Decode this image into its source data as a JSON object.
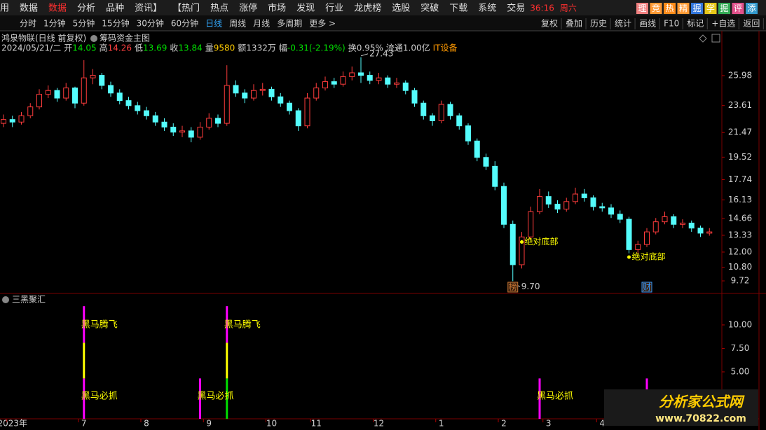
{
  "menu": {
    "items": [
      "用",
      "数据",
      "数据",
      "分析",
      "品种",
      "资讯】",
      "【热门",
      "热点",
      "涨停",
      "市场",
      "发现",
      "行业",
      "龙虎榜",
      "选股",
      "突破",
      "下载",
      "系统",
      "交易"
    ],
    "active": 2,
    "clock": "36:16",
    "day": "周六",
    "badges": [
      {
        "text": "理",
        "color": "#f08080"
      },
      {
        "text": "竞",
        "color": "#ff9933"
      },
      {
        "text": "热",
        "color": "#ff8c1a"
      },
      {
        "text": "精",
        "color": "#ff9933"
      },
      {
        "text": "掘",
        "color": "#3377dd"
      },
      {
        "text": "学",
        "color": "#e6c619"
      },
      {
        "text": "掘",
        "color": "#33aa55"
      },
      {
        "text": "评",
        "color": "#e0508a"
      },
      {
        "text": "添",
        "color": "#3399cc"
      }
    ]
  },
  "toolbar": {
    "periods": [
      "分时",
      "1分钟",
      "5分钟",
      "15分钟",
      "30分钟",
      "60分钟",
      "日线",
      "周线",
      "月线",
      "多周期",
      "更多 >"
    ],
    "active": 6,
    "actions": [
      "复权",
      "叠加",
      "历史",
      "统计",
      "画线",
      "F10",
      "标记",
      "+自选",
      "返回"
    ]
  },
  "info": [
    {
      "value": "2024/05/21/二",
      "color": "#d0d0d0"
    },
    {
      "label": "开",
      "value": "14.05",
      "color": "#00e000"
    },
    {
      "label": "高",
      "value": "14.26",
      "color": "#ff4040"
    },
    {
      "label": "低",
      "value": "13.69",
      "color": "#00e000"
    },
    {
      "label": "收",
      "value": "13.84",
      "color": "#00e000"
    },
    {
      "label": "量",
      "value": "9580",
      "color": "#ffcc00"
    },
    {
      "label": "额",
      "value": "1332万",
      "color": "#d0d0d0"
    },
    {
      "label": "幅",
      "value": "-0.31(-2.19%)",
      "color": "#00e000"
    },
    {
      "label": "换",
      "value": "0.95%",
      "color": "#d0d0d0"
    },
    {
      "label": "流通",
      "value": "1.00亿",
      "color": "#d0d0d0"
    },
    {
      "value": "IT设备",
      "color": "#ff9900"
    }
  ],
  "chart_data": [
    {
      "type": "candlestick",
      "title": "鸿泉物联(日线 前复权)",
      "indicator": "筹码资金主图",
      "up_color": "#ff3c3c",
      "down_color": "#54fcfc",
      "categories": [
        null,
        "2023年",
        null,
        null,
        null,
        null,
        null,
        null,
        null,
        "7",
        null,
        null,
        null,
        null,
        null,
        null,
        "8",
        null,
        null,
        null,
        null,
        null,
        null,
        "9",
        null,
        null,
        null,
        null,
        null,
        null,
        "10",
        null,
        null,
        null,
        null,
        "11",
        null,
        null,
        null,
        null,
        null,
        null,
        "12",
        null,
        null,
        null,
        null,
        null,
        null,
        "1",
        null,
        null,
        null,
        null,
        null,
        null,
        "2",
        null,
        null,
        null,
        null,
        "3",
        null,
        null,
        null,
        null,
        null,
        "4",
        null,
        null,
        null,
        null,
        null,
        null,
        null,
        null,
        null,
        null,
        null,
        null
      ],
      "candles": [
        [
          22.2,
          22.9,
          21.9,
          22.5
        ],
        [
          22.5,
          22.8,
          21.9,
          22.3
        ],
        [
          22.3,
          23.1,
          22.1,
          22.8
        ],
        [
          22.8,
          23.8,
          22.6,
          23.5
        ],
        [
          23.5,
          24.9,
          23.3,
          24.5
        ],
        [
          24.5,
          25.2,
          24.2,
          24.8
        ],
        [
          24.8,
          25.0,
          23.9,
          24.2
        ],
        [
          24.2,
          25.4,
          24.0,
          25.0
        ],
        [
          25.0,
          25.1,
          23.4,
          23.8
        ],
        [
          23.8,
          27.2,
          23.6,
          25.8
        ],
        [
          25.8,
          26.5,
          25.3,
          26.0
        ],
        [
          26.0,
          26.2,
          24.9,
          25.2
        ],
        [
          25.2,
          25.5,
          24.3,
          24.6
        ],
        [
          24.6,
          24.9,
          23.7,
          24.0
        ],
        [
          24.0,
          24.3,
          23.3,
          23.6
        ],
        [
          23.6,
          23.9,
          22.9,
          23.2
        ],
        [
          23.2,
          23.5,
          22.5,
          22.8
        ],
        [
          22.8,
          23.1,
          22.0,
          22.3
        ],
        [
          22.3,
          22.6,
          21.6,
          21.9
        ],
        [
          21.9,
          22.2,
          21.2,
          21.5
        ],
        [
          21.5,
          22.0,
          21.1,
          21.6
        ],
        [
          21.6,
          21.9,
          20.7,
          21.1
        ],
        [
          21.1,
          22.3,
          20.9,
          21.9
        ],
        [
          21.9,
          23.0,
          21.7,
          22.6
        ],
        [
          22.6,
          22.9,
          21.9,
          22.2
        ],
        [
          22.2,
          26.8,
          22.0,
          25.2
        ],
        [
          25.2,
          25.6,
          24.3,
          24.6
        ],
        [
          24.6,
          24.9,
          23.8,
          24.2
        ],
        [
          24.2,
          25.3,
          24.0,
          24.8
        ],
        [
          24.8,
          25.4,
          24.4,
          24.9
        ],
        [
          24.9,
          25.1,
          24.0,
          24.3
        ],
        [
          24.3,
          24.6,
          23.5,
          23.8
        ],
        [
          23.8,
          24.0,
          22.9,
          23.2
        ],
        [
          23.2,
          23.4,
          21.6,
          22.0
        ],
        [
          22.0,
          24.6,
          21.8,
          24.2
        ],
        [
          24.2,
          25.4,
          24.0,
          25.0
        ],
        [
          25.0,
          25.9,
          24.8,
          25.5
        ],
        [
          25.5,
          25.8,
          25.0,
          25.3
        ],
        [
          25.3,
          26.3,
          25.1,
          25.9
        ],
        [
          25.9,
          26.7,
          25.6,
          26.2
        ],
        [
          26.2,
          27.43,
          25.4,
          26.0
        ],
        [
          26.0,
          26.3,
          25.3,
          25.6
        ],
        [
          25.6,
          26.2,
          25.3,
          25.8
        ],
        [
          25.8,
          26.0,
          25.0,
          25.3
        ],
        [
          25.3,
          25.8,
          25.0,
          25.4
        ],
        [
          25.4,
          25.6,
          24.5,
          24.8
        ],
        [
          24.8,
          25.0,
          23.5,
          23.8
        ],
        [
          23.8,
          24.0,
          22.5,
          22.8
        ],
        [
          22.8,
          23.0,
          22.0,
          22.4
        ],
        [
          22.4,
          24.0,
          22.2,
          23.7
        ],
        [
          23.7,
          23.9,
          22.5,
          22.8
        ],
        [
          22.8,
          23.0,
          21.7,
          22.0
        ],
        [
          22.0,
          22.2,
          20.5,
          20.8
        ],
        [
          20.8,
          21.0,
          19.2,
          19.5
        ],
        [
          19.5,
          19.8,
          18.5,
          18.8
        ],
        [
          18.8,
          19.2,
          16.9,
          17.2
        ],
        [
          17.2,
          17.5,
          13.9,
          14.2
        ],
        [
          14.2,
          14.5,
          9.7,
          11.0
        ],
        [
          11.0,
          13.6,
          10.7,
          13.2
        ],
        [
          13.2,
          15.6,
          13.0,
          15.2
        ],
        [
          15.2,
          17.0,
          15.0,
          16.4
        ],
        [
          16.4,
          16.8,
          15.5,
          15.8
        ],
        [
          15.8,
          16.1,
          15.1,
          15.4
        ],
        [
          15.4,
          16.3,
          15.2,
          16.0
        ],
        [
          16.0,
          17.1,
          15.8,
          16.6
        ],
        [
          16.6,
          17.0,
          16.0,
          16.3
        ],
        [
          16.3,
          16.5,
          15.3,
          15.6
        ],
        [
          15.6,
          15.9,
          15.2,
          15.5
        ],
        [
          15.5,
          15.8,
          14.7,
          15.0
        ],
        [
          15.0,
          15.3,
          14.3,
          14.6
        ],
        [
          14.6,
          14.8,
          11.9,
          12.2
        ],
        [
          12.2,
          12.9,
          11.9,
          12.6
        ],
        [
          12.6,
          13.9,
          12.4,
          13.6
        ],
        [
          13.6,
          14.7,
          13.4,
          14.4
        ],
        [
          14.4,
          15.2,
          14.2,
          14.8
        ],
        [
          14.8,
          15.0,
          13.9,
          14.2
        ],
        [
          14.2,
          14.6,
          13.9,
          14.3
        ],
        [
          14.3,
          14.5,
          13.6,
          13.9
        ],
        [
          13.9,
          14.1,
          13.2,
          13.5
        ],
        [
          13.5,
          13.9,
          13.3,
          13.6
        ]
      ],
      "ylim": [
        8.78,
        27.53
      ],
      "yticks": [
        25.98,
        23.61,
        21.47,
        19.52,
        17.74,
        16.13,
        14.66,
        13.33,
        {
          "value": 12,
          "label": "12.00"
        },
        {
          "value": 10.8,
          "label": "10.80"
        },
        9.72
      ],
      "annotations": [
        {
          "value": 27.43,
          "x": 40
        },
        {
          "value": 9.7,
          "label": "9.70",
          "x": 57
        }
      ],
      "markers": [
        {
          "text": "绝对底部",
          "x": 58,
          "y": 12.8,
          "color": "#ffff00"
        },
        {
          "text": "绝对底部",
          "x": 70,
          "y": 11.6,
          "color": "#ffff00"
        }
      ],
      "tags": [
        {
          "text": "榜",
          "x": 57,
          "color": "#c87533"
        },
        {
          "text": "财",
          "x": 72,
          "color": "#3399ff"
        }
      ]
    },
    {
      "type": "stacked-bar",
      "title": "三黑聚汇",
      "x": [
        9,
        22,
        25,
        60,
        72
      ],
      "series": [
        {
          "colors": [
            "#ff00ff",
            "#ff00ff",
            "#00dd00",
            "#ff00ff",
            "#ff00ff"
          ],
          "values": [
            4.3,
            4.3,
            4.3,
            4.3,
            4.3
          ]
        },
        {
          "color": "#ffff00",
          "values": [
            3.8,
            null,
            3.8,
            null,
            null
          ]
        },
        {
          "color": "#ff00ff",
          "values": [
            3.9,
            null,
            3.9,
            null,
            null
          ]
        }
      ],
      "ylim": [
        0,
        13.28
      ],
      "yticks": [
        {
          "value": 10,
          "label": "10.00"
        },
        {
          "value": 7.5,
          "label": "7.50"
        },
        {
          "value": 5,
          "label": "5.00"
        }
      ],
      "annotations": [
        {
          "text": "黑马腾飞",
          "x": 9,
          "y": 10
        },
        {
          "text": "黑马腾飞",
          "x": 25,
          "y": 10
        },
        {
          "text": "黑马必抓",
          "x": 9,
          "y": 2.4
        },
        {
          "text": "黑马必抓",
          "x": 22,
          "y": 2.4
        },
        {
          "text": "黑马必抓",
          "x": 60,
          "y": 2.4
        }
      ]
    }
  ],
  "watermark": {
    "name": "分析家公式网",
    "url": "www.70822.com"
  }
}
